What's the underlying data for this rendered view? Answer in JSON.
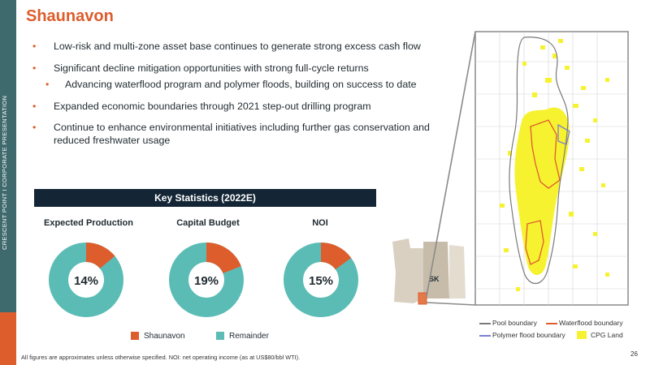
{
  "sidebar": {
    "label": "CRESCENT POINT  I  CORPORATE PRESENTATION"
  },
  "title": "Shaunavon",
  "bullets": [
    "Low-risk and multi-zone asset base continues to generate strong excess cash flow",
    "Significant decline mitigation opportunities with strong full-cycle returns",
    "Advancing waterflood program and polymer floods, building on success to date",
    "Expanded economic boundaries through 2021 step-out drilling program",
    "Continue to enhance environmental initiatives including further gas conservation and reduced freshwater usage"
  ],
  "key_stats": {
    "heading": "Key Statistics (2022E)",
    "charts": [
      {
        "title": "Expected Production",
        "value_label": "14%",
        "share": 0.14
      },
      {
        "title": "Capital Budget",
        "value_label": "19%",
        "share": 0.19
      },
      {
        "title": "NOI",
        "value_label": "15%",
        "share": 0.15
      }
    ],
    "legend": [
      {
        "label": "Shaunavon",
        "color": "#dd5d2c"
      },
      {
        "label": "Remainder",
        "color": "#5bbcb6"
      }
    ]
  },
  "map": {
    "province_label": "SK",
    "legend": [
      {
        "label": "Pool boundary",
        "color": "#7a7a7a"
      },
      {
        "label": "Waterflood boundary",
        "color": "#dd5d2c"
      },
      {
        "label": "Polymer flood boundary",
        "color": "#7b7fd1"
      },
      {
        "label": "CPG Land",
        "color": "#f7f230"
      }
    ]
  },
  "footnote": "All figures are approximates unless otherwise specified. NOI: net operating income (as at US$80/bbl WTI).",
  "page_number": "26",
  "colors": {
    "accent": "#dd5d2c",
    "teal": "#5bbcb6",
    "navy": "#142636",
    "sidebar": "#3f6a6d"
  }
}
